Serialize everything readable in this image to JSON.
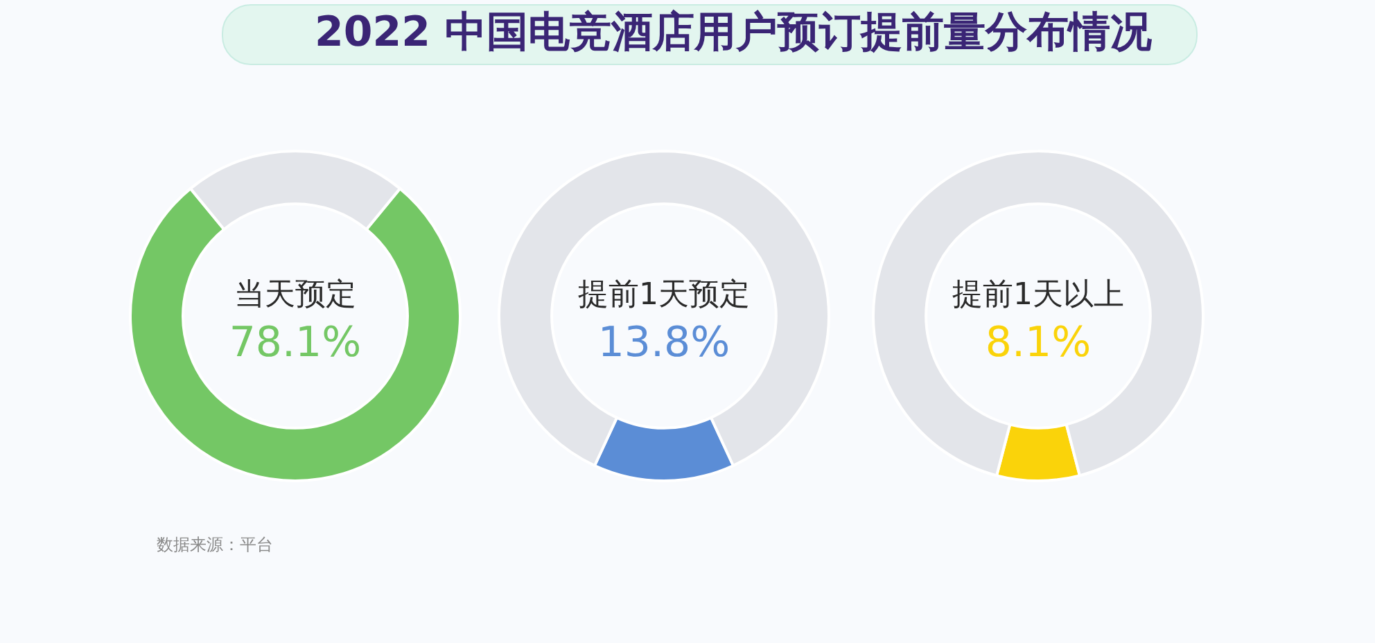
{
  "chart_data": [
    {
      "type": "donut",
      "categories": [
        "当天预定",
        null
      ],
      "values": [
        78.1,
        21.9
      ],
      "colors": [
        "#74c765",
        "#e3e5ea"
      ],
      "value_labels": [
        "78.1%",
        null
      ],
      "annotations": [
        "数据来源：平台"
      ]
    },
    {
      "type": "donut",
      "title": "2022 中国电竞酒店用户预订提前量分布情况",
      "categories": [
        "提前1天预定",
        null
      ],
      "values": [
        13.8,
        86.2
      ],
      "colors": [
        "#5b8dd6",
        "#e3e5ea"
      ],
      "value_labels": [
        "13.8%",
        null
      ]
    },
    {
      "type": "donut",
      "categories": [
        "提前1天以上",
        null
      ],
      "values": [
        8.1,
        91.9
      ],
      "colors": [
        "#fad30a",
        "#e3e5ea"
      ],
      "value_labels": [
        "8.1%",
        null
      ]
    }
  ]
}
